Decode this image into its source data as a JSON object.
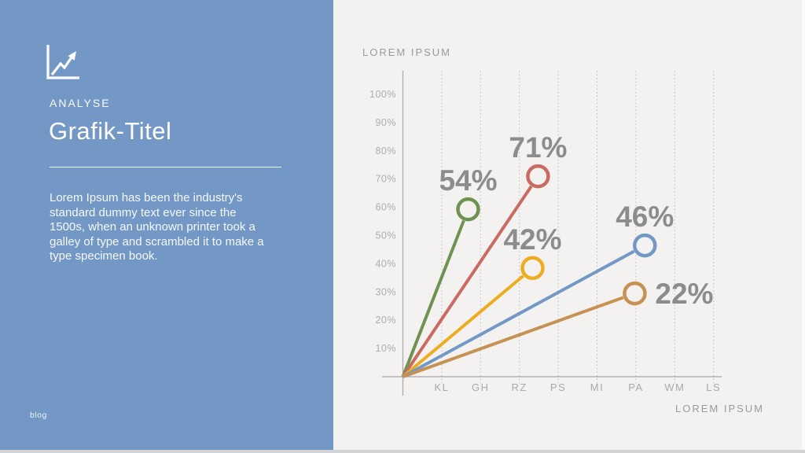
{
  "slide": {
    "bg_color": "#F3F2F1",
    "accent_color": "#7398C6"
  },
  "sidebar": {
    "icon": "trend-chart-icon",
    "eyebrow": "ANALYSE",
    "title": "Grafik-Titel",
    "body": "Lorem Ipsum has been the industry's\nstandard dummy text ever since the\n1500s, when an unknown printer took a\ngalley of type and scrambled it to make a\ntype specimen book.",
    "footer": "blog"
  },
  "chart": {
    "top_label": "LOREM IPSUM",
    "bottom_label": "LOREM IPSUM"
  },
  "chart_data": {
    "type": "scatter",
    "title": "LOREM IPSUM",
    "xlabel": "LOREM IPSUM",
    "ylabel": "",
    "categories": [
      "KL",
      "GH",
      "RZ",
      "PS",
      "MI",
      "PA",
      "WM",
      "LS"
    ],
    "y_ticks": [
      "10%",
      "20%",
      "30%",
      "40%",
      "50%",
      "60%",
      "70%",
      "80%",
      "90%",
      "100%"
    ],
    "ylim": [
      0,
      100
    ],
    "grid": "vertical-dotted",
    "legend": "none",
    "plot_bg": "#F3F2F1",
    "label_color": "#8C8C8C",
    "axis_color": "#A6A6A6",
    "layout_note": "five rays radiate from the axis origin to open circle markers",
    "series": [
      {
        "name": "green",
        "label": "54%",
        "value": 54,
        "color": "#6E9351",
        "x": 1.68,
        "y": 59.3,
        "label_pos": "above"
      },
      {
        "name": "red",
        "label": "71%",
        "value": 71,
        "color": "#CA6A60",
        "x": 3.48,
        "y": 71.0,
        "label_pos": "above"
      },
      {
        "name": "yellow",
        "label": "42%",
        "value": 42,
        "color": "#EEAD21",
        "x": 3.34,
        "y": 38.5,
        "label_pos": "above"
      },
      {
        "name": "blue",
        "label": "46%",
        "value": 46,
        "color": "#7298C6",
        "x": 6.23,
        "y": 46.5,
        "label_pos": "above"
      },
      {
        "name": "tan",
        "label": "22%",
        "value": 22,
        "color": "#C69254",
        "x": 5.97,
        "y": 29.5,
        "label_pos": "right"
      }
    ]
  }
}
